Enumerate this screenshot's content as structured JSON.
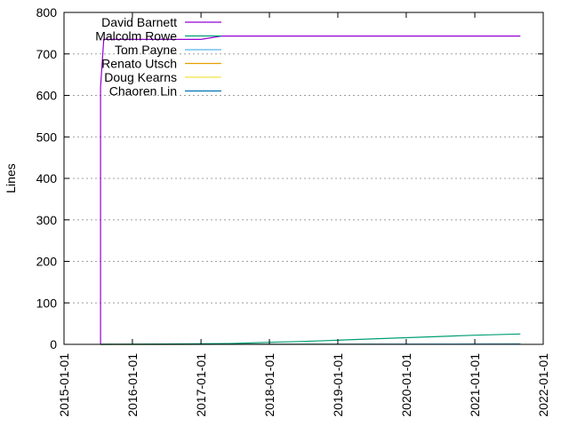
{
  "chart_data": {
    "type": "line",
    "title": "",
    "xlabel": "",
    "ylabel": "Lines",
    "xlim": [
      "2015-01-01",
      "2022-01-01"
    ],
    "ylim": [
      0,
      800
    ],
    "x_ticks": [
      "2015-01-01",
      "2016-01-01",
      "2017-01-01",
      "2018-01-01",
      "2019-01-01",
      "2020-01-01",
      "2021-01-01",
      "2022-01-01"
    ],
    "y_ticks": [
      0,
      100,
      200,
      300,
      400,
      500,
      600,
      700,
      800
    ],
    "grid": "horizontal dotted",
    "legend_position": "top-left",
    "series": [
      {
        "name": "David Barnett",
        "color": "#9400d3",
        "points": [
          [
            "2015-07-15",
            0
          ],
          [
            "2015-07-15",
            620
          ],
          [
            "2015-08-01",
            735
          ],
          [
            "2017-01-01",
            735
          ],
          [
            "2017-04-20",
            743
          ],
          [
            "2021-09-01",
            743
          ]
        ]
      },
      {
        "name": "Malcolm Rowe",
        "color": "#009e73",
        "points": [
          [
            "2015-07-15",
            0
          ],
          [
            "2017-06-01",
            2
          ],
          [
            "2018-01-01",
            5
          ],
          [
            "2018-07-01",
            7
          ],
          [
            "2019-01-01",
            10
          ],
          [
            "2019-07-01",
            13
          ],
          [
            "2020-01-01",
            16
          ],
          [
            "2020-07-01",
            19
          ],
          [
            "2021-01-01",
            22
          ],
          [
            "2021-09-01",
            25
          ]
        ]
      },
      {
        "name": "Tom Payne",
        "color": "#56b4e9",
        "points": [
          [
            "2015-07-15",
            0
          ],
          [
            "2021-09-01",
            1
          ]
        ]
      },
      {
        "name": "Renato Utsch",
        "color": "#e69f00",
        "points": [
          [
            "2015-07-15",
            0
          ],
          [
            "2021-09-01",
            1
          ]
        ]
      },
      {
        "name": "Doug Kearns",
        "color": "#f0e442",
        "points": [
          [
            "2015-07-15",
            0
          ],
          [
            "2021-09-01",
            1
          ]
        ]
      },
      {
        "name": "Chaoren Lin",
        "color": "#0072b2",
        "points": [
          [
            "2015-07-15",
            0
          ],
          [
            "2021-09-01",
            1
          ]
        ]
      }
    ]
  }
}
